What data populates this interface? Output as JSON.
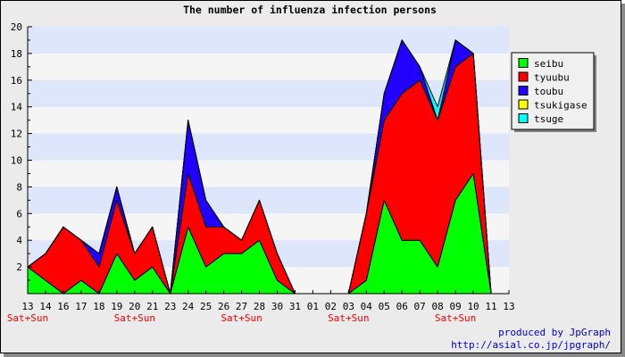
{
  "chart_data": {
    "type": "area",
    "title": "The number of influenza infection persons",
    "x": [
      "13",
      "14",
      "16",
      "17",
      "18",
      "19",
      "20",
      "21",
      "23",
      "24",
      "25",
      "26",
      "27",
      "28",
      "30",
      "31",
      "01",
      "02",
      "03",
      "04",
      "05",
      "06",
      "07",
      "08",
      "09",
      "10",
      "11",
      "13"
    ],
    "x_sublabels": {
      "0": "Sat+Sun",
      "6": "Sat+Sun",
      "12": "Sat+Sun",
      "18": "Sat+Sun",
      "24": "Sat+Sun"
    },
    "y_ticks": [
      "2",
      "4",
      "6",
      "8",
      "10",
      "12",
      "14",
      "16",
      "18",
      "20"
    ],
    "ylim": [
      0,
      20
    ],
    "stacked": true,
    "series": [
      {
        "name": "seibu",
        "color": "#00ff00",
        "values": [
          2,
          1,
          0,
          1,
          0,
          3,
          1,
          2,
          0,
          5,
          2,
          3,
          3,
          4,
          1,
          0,
          0,
          0,
          0,
          1,
          7,
          4,
          4,
          2,
          7,
          9,
          0,
          0
        ]
      },
      {
        "name": "tyuubu",
        "color": "#ff0000",
        "values": [
          0,
          2,
          5,
          3,
          2,
          4,
          2,
          3,
          0,
          4,
          3,
          2,
          1,
          3,
          2,
          0,
          0,
          0,
          0,
          5,
          6,
          11,
          12,
          11,
          10,
          9,
          0,
          0
        ]
      },
      {
        "name": "toubu",
        "color": "#2200ff",
        "values": [
          0,
          0,
          0,
          0,
          1,
          1,
          0,
          0,
          0,
          4,
          2,
          0,
          0,
          0,
          0,
          0,
          0,
          0,
          0,
          0,
          2,
          4,
          1,
          0,
          2,
          0,
          0,
          0
        ]
      },
      {
        "name": "tsukigase",
        "color": "#ffff00",
        "values": [
          0,
          0,
          0,
          0,
          0,
          0,
          0,
          0,
          0,
          0,
          0,
          0,
          0,
          0,
          0,
          0,
          0,
          0,
          0,
          0,
          0,
          0,
          0,
          0,
          0,
          0,
          0,
          0
        ]
      },
      {
        "name": "tsuge",
        "color": "#00ffff",
        "values": [
          0,
          0,
          0,
          0,
          0,
          0,
          0,
          0,
          0,
          0,
          0,
          0,
          0,
          0,
          0,
          0,
          0,
          0,
          0,
          0,
          0,
          0,
          0,
          1,
          0,
          0,
          0,
          0
        ]
      }
    ],
    "grid": "horizontal bands",
    "legend": "right"
  },
  "credits": {
    "line1": "produced by JpGraph",
    "line2": "http://asial.co.jp/jpgraph/"
  }
}
